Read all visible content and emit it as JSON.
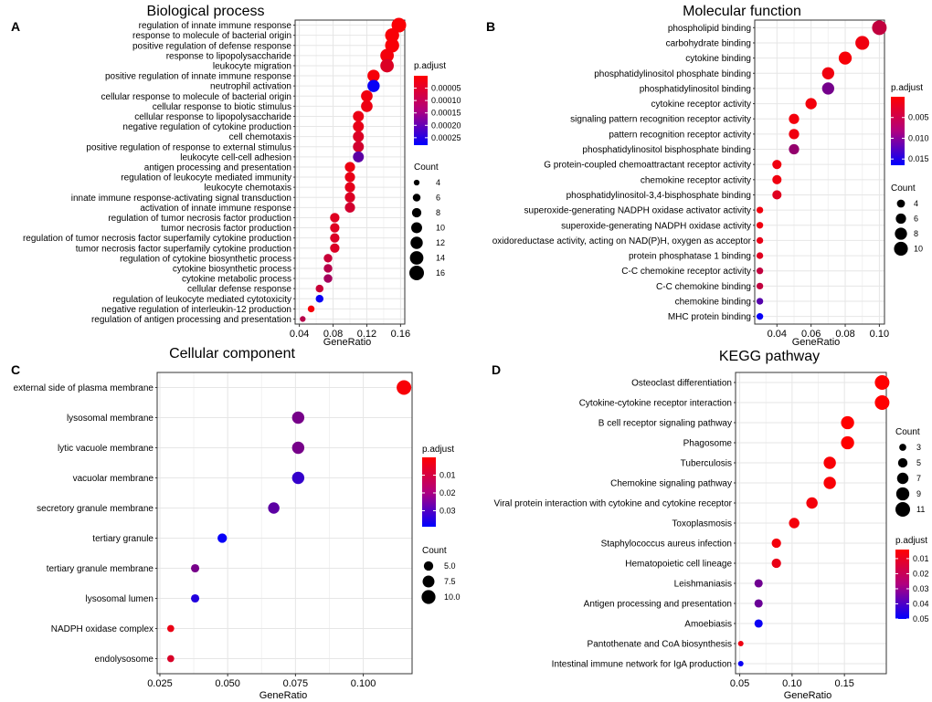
{
  "chart_data": [
    {
      "panel_letter": "A",
      "type": "scatter",
      "title": "Biological process",
      "xlabel": "GeneRatio",
      "ylabel": "",
      "xlim": [
        0.035,
        0.165
      ],
      "xticks": [
        0.04,
        0.08,
        0.12,
        0.16
      ],
      "xtick_labels": [
        "0.04",
        "0.08",
        "0.12",
        "0.16"
      ],
      "color_scale": {
        "title": "p.adjust",
        "min": 0.0,
        "max": 0.00028,
        "ticks": [
          5e-05,
          0.0001,
          0.00015,
          0.0002,
          0.00025
        ],
        "tick_labels": [
          "0.00005",
          "0.00010",
          "0.00015",
          "0.00020",
          "0.00025"
        ]
      },
      "size_scale": {
        "title": "Count",
        "min": 3,
        "max": 16,
        "ticks": [
          4,
          6,
          8,
          10,
          12,
          14,
          16
        ],
        "tick_labels": [
          "4",
          "6",
          "8",
          "10",
          "12",
          "14",
          "16"
        ]
      },
      "terms": [
        {
          "label": "regulation of innate immune response",
          "x": 0.158,
          "count": 16,
          "padj": 5e-06
        },
        {
          "label": "response to molecule of bacterial origin",
          "x": 0.15,
          "count": 15,
          "padj": 8e-06
        },
        {
          "label": "positive regulation of defense response",
          "x": 0.15,
          "count": 15,
          "padj": 8e-06
        },
        {
          "label": "response to lipopolysaccharide",
          "x": 0.144,
          "count": 14,
          "padj": 1.2e-05
        },
        {
          "label": "leukocyte migration",
          "x": 0.144,
          "count": 14,
          "padj": 4e-05
        },
        {
          "label": "positive regulation of innate immune response",
          "x": 0.128,
          "count": 12,
          "padj": 1e-05
        },
        {
          "label": "neutrophil activation",
          "x": 0.128,
          "count": 12,
          "padj": 0.00027
        },
        {
          "label": "cellular response to molecule of bacterial origin",
          "x": 0.12,
          "count": 11,
          "padj": 1.5e-05
        },
        {
          "label": "cellular response to biotic stimulus",
          "x": 0.12,
          "count": 11,
          "padj": 2e-05
        },
        {
          "label": "cellular response to lipopolysaccharide",
          "x": 0.11,
          "count": 10,
          "padj": 2.2e-05
        },
        {
          "label": "negative regulation of cytokine production",
          "x": 0.11,
          "count": 10,
          "padj": 2.5e-05
        },
        {
          "label": "cell chemotaxis",
          "x": 0.11,
          "count": 10,
          "padj": 4e-05
        },
        {
          "label": "positive regulation of response to external stimulus",
          "x": 0.11,
          "count": 10,
          "padj": 5e-05
        },
        {
          "label": "leukocyte cell-cell adhesion",
          "x": 0.11,
          "count": 10,
          "padj": 0.00018
        },
        {
          "label": "antigen processing and presentation",
          "x": 0.1,
          "count": 9,
          "padj": 2e-05
        },
        {
          "label": "regulation of leukocyte mediated immunity",
          "x": 0.1,
          "count": 9,
          "padj": 2.5e-05
        },
        {
          "label": "leukocyte chemotaxis",
          "x": 0.1,
          "count": 9,
          "padj": 3e-05
        },
        {
          "label": "innate immune response-activating signal transduction",
          "x": 0.1,
          "count": 9,
          "padj": 4e-05
        },
        {
          "label": "activation of innate immune response",
          "x": 0.1,
          "count": 9,
          "padj": 5e-05
        },
        {
          "label": "regulation of tumor necrosis factor production",
          "x": 0.082,
          "count": 8,
          "padj": 3.5e-05
        },
        {
          "label": "tumor necrosis factor production",
          "x": 0.082,
          "count": 8,
          "padj": 3.5e-05
        },
        {
          "label": "regulation of tumor necrosis factor superfamily cytokine production",
          "x": 0.082,
          "count": 8,
          "padj": 4e-05
        },
        {
          "label": "tumor necrosis factor superfamily cytokine production",
          "x": 0.082,
          "count": 8,
          "padj": 4e-05
        },
        {
          "label": "regulation of cytokine biosynthetic process",
          "x": 0.074,
          "count": 7,
          "padj": 6e-05
        },
        {
          "label": "cytokine biosynthetic process",
          "x": 0.074,
          "count": 7,
          "padj": 8e-05
        },
        {
          "label": "cytokine metabolic process",
          "x": 0.074,
          "count": 7,
          "padj": 0.0001
        },
        {
          "label": "cellular defense response",
          "x": 0.064,
          "count": 6,
          "padj": 6e-05
        },
        {
          "label": "regulation of leukocyte mediated cytotoxicity",
          "x": 0.064,
          "count": 6,
          "padj": 0.00027
        },
        {
          "label": "negative regulation of interleukin-12 production",
          "x": 0.054,
          "count": 5,
          "padj": 1e-05
        },
        {
          "label": "regulation of antigen processing and presentation",
          "x": 0.044,
          "count": 4,
          "padj": 8e-05
        }
      ]
    },
    {
      "panel_letter": "B",
      "type": "scatter",
      "title": "Molecular function",
      "xlabel": "GeneRatio",
      "ylabel": "",
      "xlim": [
        0.027,
        0.103
      ],
      "xticks": [
        0.04,
        0.06,
        0.08,
        0.1
      ],
      "xtick_labels": [
        "0.04",
        "0.06",
        "0.08",
        "0.10"
      ],
      "color_scale": {
        "title": "p.adjust",
        "min": 0.0,
        "max": 0.0165,
        "ticks": [
          0.005,
          0.01,
          0.015
        ],
        "tick_labels": [
          "0.005",
          "0.010",
          "0.015"
        ]
      },
      "size_scale": {
        "title": "Count",
        "min": 2,
        "max": 11,
        "ticks": [
          4,
          6,
          8,
          10
        ],
        "tick_labels": [
          "4",
          "6",
          "8",
          "10"
        ]
      },
      "terms": [
        {
          "label": "phospholipid binding",
          "x": 0.1,
          "count": 11,
          "padj": 0.004
        },
        {
          "label": "carbohydrate binding",
          "x": 0.09,
          "count": 10,
          "padj": 0.001
        },
        {
          "label": "cytokine binding",
          "x": 0.08,
          "count": 9,
          "padj": 0.0005
        },
        {
          "label": "phosphatidylinositol phosphate binding",
          "x": 0.07,
          "count": 8,
          "padj": 0.001
        },
        {
          "label": "phosphatidylinositol binding",
          "x": 0.07,
          "count": 8,
          "padj": 0.009
        },
        {
          "label": "cytokine receptor activity",
          "x": 0.06,
          "count": 7,
          "padj": 0.0008
        },
        {
          "label": "signaling pattern recognition receptor activity",
          "x": 0.05,
          "count": 6,
          "padj": 0.0008
        },
        {
          "label": "pattern recognition receptor activity",
          "x": 0.05,
          "count": 6,
          "padj": 0.001
        },
        {
          "label": "phosphatidylinositol bisphosphate binding",
          "x": 0.05,
          "count": 6,
          "padj": 0.007
        },
        {
          "label": "G protein-coupled chemoattractant receptor activity",
          "x": 0.04,
          "count": 5,
          "padj": 0.001
        },
        {
          "label": "chemokine receptor activity",
          "x": 0.04,
          "count": 5,
          "padj": 0.001
        },
        {
          "label": "phosphatidylinositol-3,4-bisphosphate binding",
          "x": 0.04,
          "count": 5,
          "padj": 0.002
        },
        {
          "label": "superoxide-generating NADPH oxidase activator activity",
          "x": 0.03,
          "count": 3,
          "padj": 0.001
        },
        {
          "label": "superoxide-generating NADPH oxidase activity",
          "x": 0.03,
          "count": 3,
          "padj": 0.001
        },
        {
          "label": "oxidoreductase activity, acting on NAD(P)H, oxygen as acceptor",
          "x": 0.03,
          "count": 3,
          "padj": 0.0015
        },
        {
          "label": "protein phosphatase 1 binding",
          "x": 0.03,
          "count": 3,
          "padj": 0.002
        },
        {
          "label": "C-C chemokine receptor activity",
          "x": 0.03,
          "count": 3,
          "padj": 0.004
        },
        {
          "label": "C-C chemokine binding",
          "x": 0.03,
          "count": 3,
          "padj": 0.004
        },
        {
          "label": "chemokine binding",
          "x": 0.03,
          "count": 3,
          "padj": 0.011
        },
        {
          "label": "MHC protein binding",
          "x": 0.03,
          "count": 3,
          "padj": 0.016
        }
      ]
    },
    {
      "panel_letter": "C",
      "type": "scatter",
      "title": "Cellular component",
      "xlabel": "GeneRatio",
      "ylabel": "",
      "xlim": [
        0.024,
        0.118
      ],
      "xticks": [
        0.025,
        0.05,
        0.075,
        0.1
      ],
      "xtick_labels": [
        "0.025",
        "0.050",
        "0.075",
        "0.100"
      ],
      "color_scale": {
        "title": "p.adjust",
        "min": 0.0,
        "max": 0.039,
        "ticks": [
          0.01,
          0.02,
          0.03
        ],
        "tick_labels": [
          "0.01",
          "0.02",
          "0.03"
        ]
      },
      "size_scale": {
        "title": "Count",
        "min": 2,
        "max": 11,
        "ticks": [
          5.0,
          7.5,
          10.0
        ],
        "tick_labels": [
          "5.0",
          "7.5",
          "10.0"
        ]
      },
      "terms": [
        {
          "label": "external side of plasma membrane",
          "x": 0.115,
          "count": 11,
          "padj": 0.001
        },
        {
          "label": "lysosomal membrane",
          "x": 0.076,
          "count": 8,
          "padj": 0.021
        },
        {
          "label": "lytic vacuole membrane",
          "x": 0.076,
          "count": 8,
          "padj": 0.021
        },
        {
          "label": "vacuolar membrane",
          "x": 0.076,
          "count": 8,
          "padj": 0.031
        },
        {
          "label": "secretory granule membrane",
          "x": 0.067,
          "count": 7,
          "padj": 0.025
        },
        {
          "label": "tertiary granule",
          "x": 0.048,
          "count": 5,
          "padj": 0.038
        },
        {
          "label": "tertiary granule membrane",
          "x": 0.038,
          "count": 4,
          "padj": 0.021
        },
        {
          "label": "lysosomal lumen",
          "x": 0.038,
          "count": 4,
          "padj": 0.034
        },
        {
          "label": "NADPH oxidase complex",
          "x": 0.029,
          "count": 3,
          "padj": 0.003
        },
        {
          "label": "endolysosome",
          "x": 0.029,
          "count": 3,
          "padj": 0.006
        }
      ]
    },
    {
      "panel_letter": "D",
      "type": "scatter",
      "title": "KEGG pathway",
      "xlabel": "GeneRatio",
      "ylabel": "",
      "xlim": [
        0.046,
        0.19
      ],
      "xticks": [
        0.05,
        0.1,
        0.15
      ],
      "xtick_labels": [
        "0.05",
        "0.10",
        "0.15"
      ],
      "color_scale": {
        "title": "p.adjust",
        "min": 0.004,
        "max": 0.05,
        "ticks": [
          0.01,
          0.02,
          0.03,
          0.04,
          0.05
        ],
        "tick_labels": [
          "0.01",
          "0.02",
          "0.03",
          "0.04",
          "0.05"
        ]
      },
      "size_scale": {
        "title": "Count",
        "min": 2,
        "max": 11,
        "ticks": [
          3,
          5,
          7,
          9,
          11
        ],
        "tick_labels": [
          "3",
          "5",
          "7",
          "9",
          "11"
        ]
      },
      "terms": [
        {
          "label": "Osteoclast differentiation",
          "x": 0.186,
          "count": 11,
          "padj": 0.004
        },
        {
          "label": "Cytokine-cytokine receptor interaction",
          "x": 0.186,
          "count": 11,
          "padj": 0.004
        },
        {
          "label": "B cell receptor signaling pathway",
          "x": 0.153,
          "count": 9,
          "padj": 0.004
        },
        {
          "label": "Phagosome",
          "x": 0.153,
          "count": 9,
          "padj": 0.004
        },
        {
          "label": "Tuberculosis",
          "x": 0.136,
          "count": 8,
          "padj": 0.005
        },
        {
          "label": "Chemokine signaling pathway",
          "x": 0.136,
          "count": 8,
          "padj": 0.005
        },
        {
          "label": "Viral protein interaction with cytokine and cytokine receptor",
          "x": 0.119,
          "count": 7,
          "padj": 0.006
        },
        {
          "label": "Toxoplasmosis",
          "x": 0.102,
          "count": 6,
          "padj": 0.006
        },
        {
          "label": "Staphylococcus aureus infection",
          "x": 0.085,
          "count": 5,
          "padj": 0.006
        },
        {
          "label": "Hematopoietic cell lineage",
          "x": 0.085,
          "count": 5,
          "padj": 0.008
        },
        {
          "label": "Leishmaniasis",
          "x": 0.068,
          "count": 4,
          "padj": 0.03
        },
        {
          "label": "Antigen processing and presentation",
          "x": 0.068,
          "count": 4,
          "padj": 0.031
        },
        {
          "label": "Amoebiasis",
          "x": 0.068,
          "count": 4,
          "padj": 0.048
        },
        {
          "label": "Pantothenate and CoA biosynthesis",
          "x": 0.051,
          "count": 2,
          "padj": 0.007
        },
        {
          "label": "Intestinal immune network for IgA production",
          "x": 0.051,
          "count": 2,
          "padj": 0.048
        }
      ]
    }
  ]
}
